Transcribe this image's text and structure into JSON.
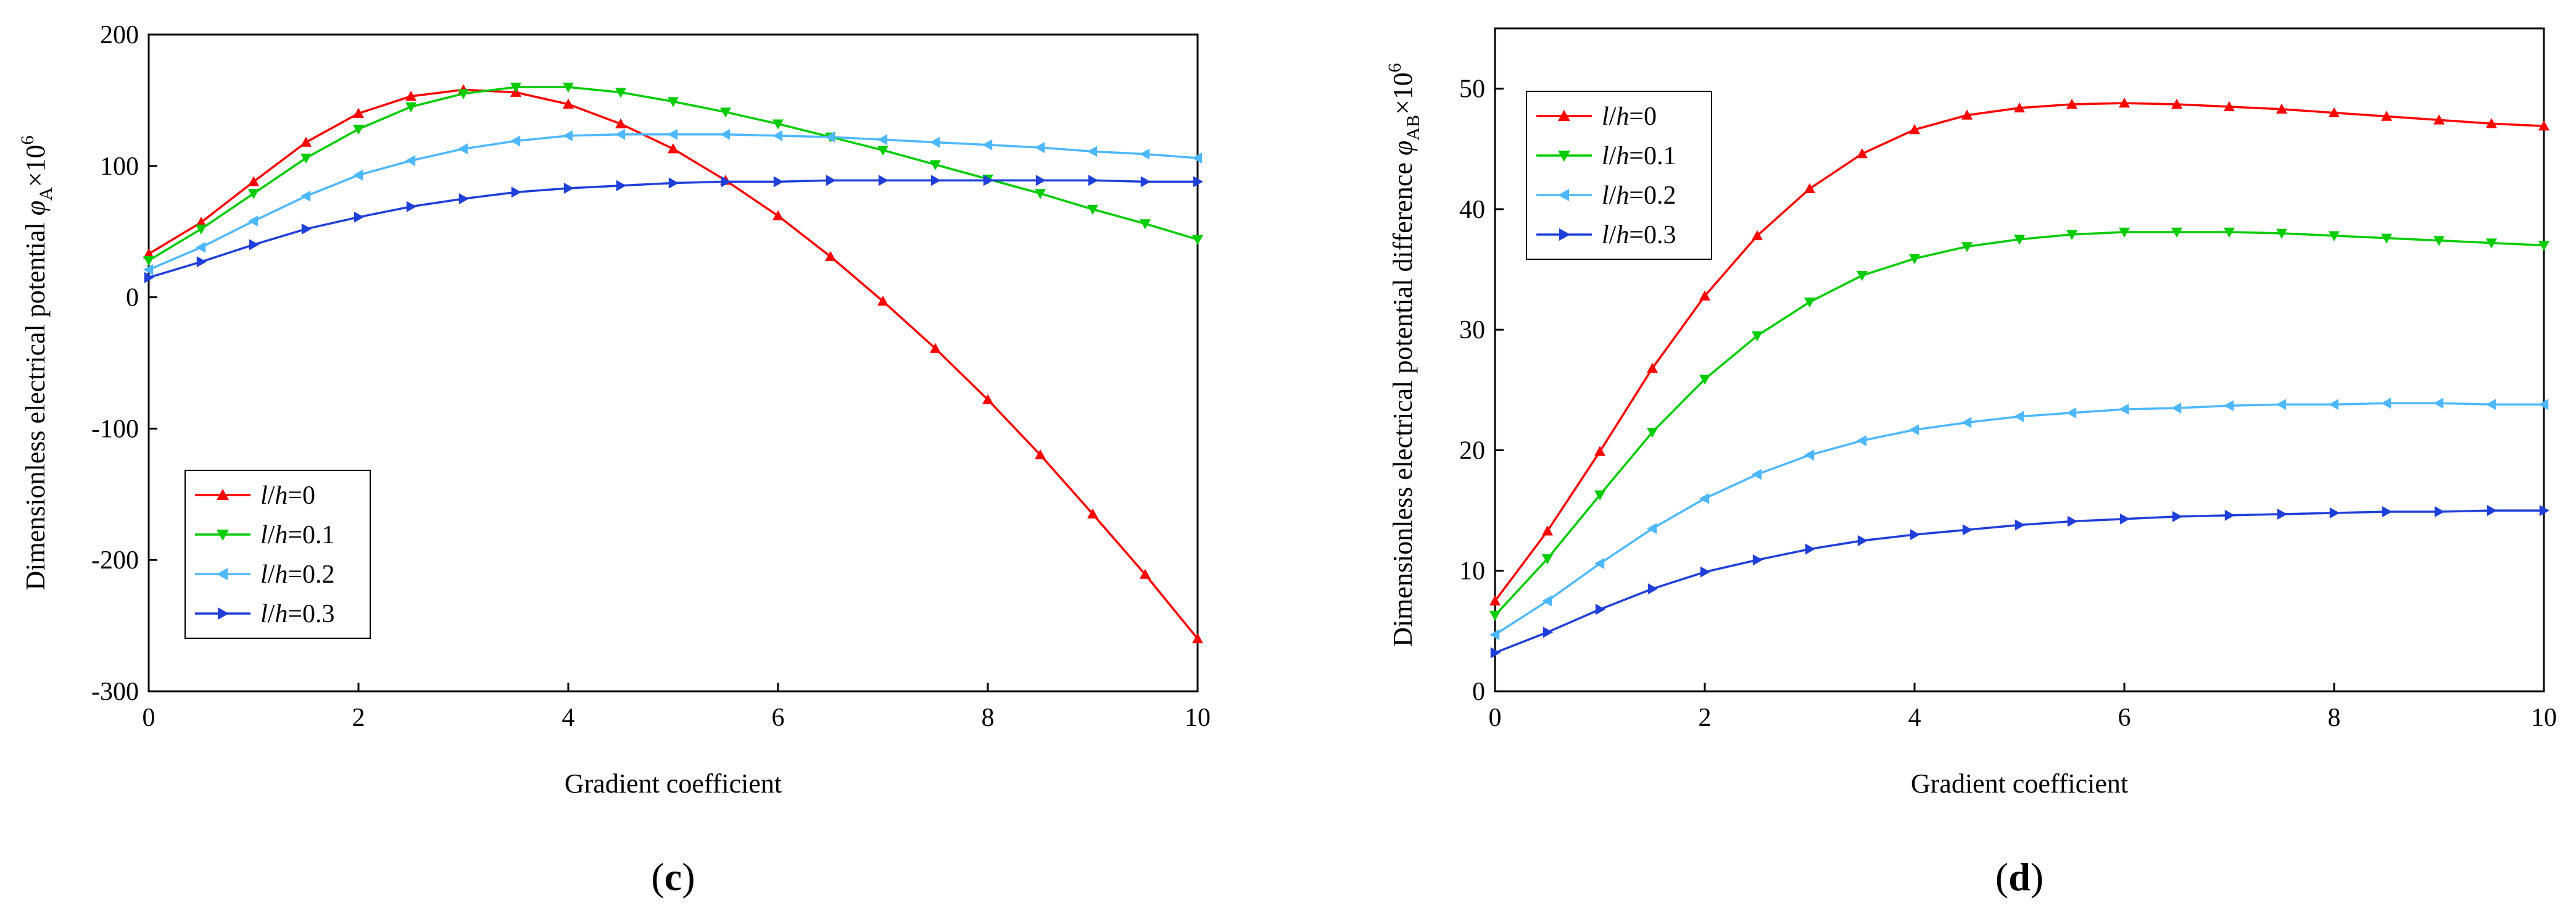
{
  "chart_data": [
    {
      "type": "line",
      "panel_label": "c",
      "xlabel": "Gradient coefficient",
      "ylabel_prefix": "Dimensionless electrical potential ",
      "ylabel_symbol": "φ",
      "ylabel_subscript": "A",
      "ylabel_suffix": "×10",
      "ylabel_exponent": "6",
      "xlim": [
        0,
        10
      ],
      "ylim": [
        -300,
        200
      ],
      "xticks": [
        0,
        2,
        4,
        6,
        8,
        10
      ],
      "yticks": [
        -300,
        -200,
        -100,
        0,
        100,
        200
      ],
      "legend_position": "bottom-left",
      "x": [
        0,
        0.5,
        1,
        1.5,
        2,
        2.5,
        3,
        3.5,
        4,
        4.5,
        5,
        5.5,
        6,
        6.5,
        7,
        7.5,
        8,
        8.5,
        9,
        9.5,
        10
      ],
      "series": [
        {
          "name": "l/h=0",
          "label_italic1": "l",
          "label_sep": "/",
          "label_italic2": "h",
          "label_value": "=0",
          "color": "#ff0000",
          "marker": "triangle-up",
          "values": [
            33,
            57,
            88,
            118,
            140,
            153,
            158,
            156,
            147,
            132,
            113,
            89,
            62,
            31,
            -3,
            -39,
            -78,
            -120,
            -165,
            -211,
            -260
          ]
        },
        {
          "name": "l/h=0.1",
          "label_italic1": "l",
          "label_sep": "/",
          "label_italic2": "h",
          "label_value": "=0.1",
          "color": "#00cc00",
          "marker": "triangle-down",
          "values": [
            28,
            52,
            79,
            106,
            128,
            145,
            155,
            160,
            160,
            156,
            149,
            141,
            132,
            122,
            112,
            101,
            90,
            79,
            67,
            56,
            44
          ]
        },
        {
          "name": "l/h=0.2",
          "label_italic1": "l",
          "label_sep": "/",
          "label_italic2": "h",
          "label_value": "=0.2",
          "color": "#4db8ff",
          "marker": "triangle-left",
          "values": [
            21,
            38,
            58,
            77,
            93,
            104,
            113,
            119,
            123,
            124,
            124,
            124,
            123,
            122,
            120,
            118,
            116,
            114,
            111,
            109,
            106
          ]
        },
        {
          "name": "l/h=0.3",
          "label_italic1": "l",
          "label_sep": "/",
          "label_italic2": "h",
          "label_value": "=0.3",
          "color": "#1f3fd9",
          "marker": "triangle-right",
          "values": [
            15,
            27,
            40,
            52,
            61,
            69,
            75,
            80,
            83,
            85,
            87,
            88,
            88,
            89,
            89,
            89,
            89,
            89,
            89,
            88,
            88
          ]
        }
      ]
    },
    {
      "type": "line",
      "panel_label": "d",
      "xlabel": "Gradient coefficient",
      "ylabel_prefix": "Dimensionless electrical potential difference ",
      "ylabel_symbol": "φ",
      "ylabel_subscript": "AB",
      "ylabel_suffix": "×10",
      "ylabel_exponent": "6",
      "xlim": [
        0,
        10
      ],
      "ylim": [
        0,
        55
      ],
      "xticks": [
        0,
        2,
        4,
        6,
        8,
        10
      ],
      "yticks": [
        0,
        10,
        20,
        30,
        40,
        50
      ],
      "legend_position": "top-left",
      "x": [
        0,
        0.5,
        1,
        1.5,
        2,
        2.5,
        3,
        3.5,
        4,
        4.5,
        5,
        5.5,
        6,
        6.5,
        7,
        7.5,
        8,
        8.5,
        9,
        9.5,
        10
      ],
      "series": [
        {
          "name": "l/h=0",
          "label_italic1": "l",
          "label_sep": "/",
          "label_italic2": "h",
          "label_value": "=0",
          "color": "#ff0000",
          "marker": "triangle-up",
          "values": [
            7.5,
            13.3,
            19.9,
            26.8,
            32.8,
            37.8,
            41.7,
            44.6,
            46.6,
            47.8,
            48.4,
            48.7,
            48.8,
            48.7,
            48.5,
            48.3,
            48.0,
            47.7,
            47.4,
            47.1,
            46.9
          ]
        },
        {
          "name": "l/h=0.1",
          "label_italic1": "l",
          "label_sep": "/",
          "label_italic2": "h",
          "label_value": "=0.1",
          "color": "#00cc00",
          "marker": "triangle-down",
          "values": [
            6.3,
            11.0,
            16.3,
            21.5,
            25.9,
            29.5,
            32.3,
            34.5,
            35.9,
            36.9,
            37.5,
            37.9,
            38.1,
            38.1,
            38.1,
            38.0,
            37.8,
            37.6,
            37.4,
            37.2,
            37.0
          ]
        },
        {
          "name": "l/h=0.2",
          "label_italic1": "l",
          "label_sep": "/",
          "label_italic2": "h",
          "label_value": "=0.2",
          "color": "#4db8ff",
          "marker": "triangle-left",
          "values": [
            4.7,
            7.5,
            10.6,
            13.5,
            16.0,
            18.0,
            19.6,
            20.8,
            21.7,
            22.3,
            22.8,
            23.1,
            23.4,
            23.5,
            23.7,
            23.8,
            23.8,
            23.9,
            23.9,
            23.8,
            23.8
          ]
        },
        {
          "name": "l/h=0.3",
          "label_italic1": "l",
          "label_sep": "/",
          "label_italic2": "h",
          "label_value": "=0.3",
          "color": "#1f3fd9",
          "marker": "triangle-right",
          "values": [
            3.2,
            4.9,
            6.8,
            8.5,
            9.9,
            10.9,
            11.8,
            12.5,
            13.0,
            13.4,
            13.8,
            14.1,
            14.3,
            14.5,
            14.6,
            14.7,
            14.8,
            14.9,
            14.9,
            15.0,
            15.0
          ]
        }
      ]
    }
  ]
}
